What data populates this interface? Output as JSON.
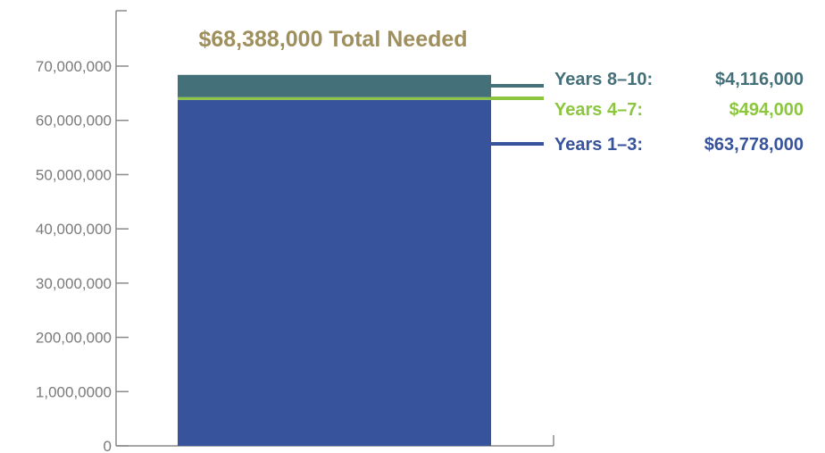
{
  "chart_data": {
    "type": "bar",
    "stacked": true,
    "title": "$68,388,000 Total Needed",
    "xlabel": "",
    "ylabel": "",
    "ylim": [
      0,
      70000000
    ],
    "yticks": [
      {
        "value": 0,
        "label": "0"
      },
      {
        "value": 10000000,
        "label": "1,000,0000"
      },
      {
        "value": 20000000,
        "label": "200,00,000"
      },
      {
        "value": 30000000,
        "label": "30,000,000"
      },
      {
        "value": 40000000,
        "label": "40,000,000"
      },
      {
        "value": 50000000,
        "label": "50,000,000"
      },
      {
        "value": 60000000,
        "label": "60,000,000"
      },
      {
        "value": 70000000,
        "label": "70,000,000"
      }
    ],
    "grid": false,
    "legend_placement": "right",
    "series": [
      {
        "name": "Years 1–3:",
        "value_label": "$63,778,000",
        "value": 63778000,
        "color": "#37539b"
      },
      {
        "name": "Years 4–7:",
        "value_label": "$494,000",
        "value": 494000,
        "color": "#8cc63f"
      },
      {
        "name": "Years 8–10:",
        "value_label": "$4,116,000",
        "value": 4116000,
        "color": "#44707a"
      }
    ],
    "colors": {
      "title": "#9e8f5c",
      "axis": "#8a8a8a",
      "tick_text": "#7a7a7a"
    }
  }
}
